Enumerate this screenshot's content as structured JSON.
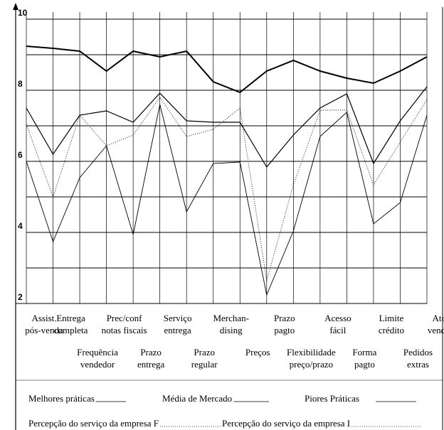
{
  "chart_data": {
    "type": "line",
    "categories": [
      "Assist.\npós-venda",
      "Entrega\ncompleta",
      "Frequência\nvendedor",
      "Prec/conf\nnotas fiscais",
      "Prazo\nentrega",
      "Serviço\nentrega",
      "Prazo\nregular",
      "Merchan-\ndising",
      "Preços",
      "Prazo\npagto",
      "Flexibilidade\npreço/prazo",
      "Acesso\nfácil",
      "Forma\npagto",
      "Limite\ncrédito",
      "Pedidos\nextras",
      "Atend.\nvendedor"
    ],
    "series": [
      {
        "name": "Melhores práticas",
        "color": "#000000",
        "width": 2,
        "dash": "none",
        "values": [
          9.24,
          9.18,
          9.1,
          8.54,
          9.1,
          8.94,
          9.1,
          8.24,
          7.94,
          8.54,
          8.84,
          8.54,
          8.34,
          8.2,
          8.54,
          8.94
        ]
      },
      {
        "name": "Média de Mercado",
        "color": "#000000",
        "width": 1.2,
        "dash": "none",
        "values": [
          7.5,
          6.2,
          7.3,
          7.42,
          7.1,
          7.92,
          7.14,
          7.1,
          7.1,
          5.84,
          6.74,
          7.5,
          7.9,
          5.94,
          7.14,
          8.1
        ]
      },
      {
        "name": "Piores Práticas",
        "color": "#000000",
        "width": 0.9,
        "dash": "none",
        "values": [
          6,
          3.74,
          5.54,
          6.44,
          3.94,
          7.6,
          4.58,
          5.94,
          5.98,
          2.24,
          4.04,
          6.7,
          7.38,
          4.24,
          4.84,
          7.3
        ]
      },
      {
        "name": "Percepção do serviço da empresa F",
        "color": "#000000",
        "width": 0.9,
        "dash": "1 2",
        "values": [
          7.04,
          5,
          7.3,
          6.44,
          6.74,
          7.8,
          6.7,
          6.9,
          7.5,
          2.64,
          5.34,
          7.44,
          7.44,
          5.34,
          6.54,
          7.74
        ]
      },
      {
        "name": "Percepção do serviço da empresa I",
        "color": "#000000",
        "width": 0.9,
        "dash": "1 2",
        "values": [
          null,
          null,
          null,
          null,
          null,
          null,
          null,
          null,
          null,
          null,
          null,
          null,
          null,
          null,
          null,
          null
        ]
      }
    ],
    "ylim": [
      2,
      10
    ],
    "yticks": [
      2,
      4,
      6,
      8,
      10
    ],
    "minor_yticks": [
      3,
      5,
      7,
      9
    ],
    "grid": true
  }
}
